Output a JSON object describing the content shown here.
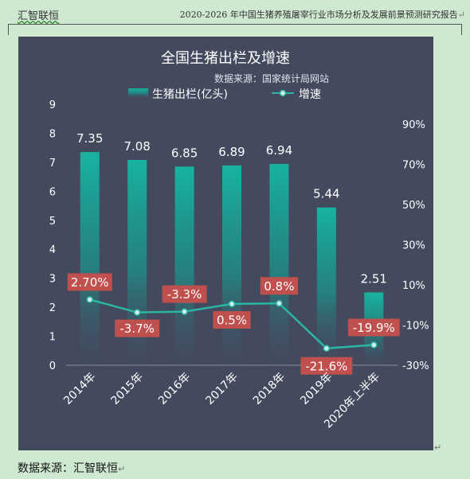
{
  "header": {
    "left": "汇智联恒",
    "right": "2020-2026 年中国生猪养殖屠宰行业市场分析及发展前景预测研究报告"
  },
  "footer": {
    "source": "数据来源：汇智联恒"
  },
  "colors": {
    "panel_bg": "#434a5e",
    "bar_top": "#17b3a0",
    "line": "#2bb6a3",
    "label_box": "#c0504d",
    "text": "#ffffff"
  },
  "chart_data": {
    "type": "bar+line",
    "title": "全国生猪出栏及增速",
    "subtitle": "数据来源：国家统计局网站",
    "categories": [
      "2014年",
      "2015年",
      "2016年",
      "2017年",
      "2018年",
      "2019年",
      "2020年上半年"
    ],
    "series": [
      {
        "name": "生猪出栏(亿头)",
        "type": "bar",
        "axis": "left",
        "values": [
          7.35,
          7.08,
          6.85,
          6.89,
          6.94,
          5.44,
          2.51
        ],
        "labels": [
          "7.35",
          "7.08",
          "6.85",
          "6.89",
          "6.94",
          "5.44",
          "2.51"
        ]
      },
      {
        "name": "增速",
        "type": "line",
        "axis": "right",
        "values": [
          2.7,
          -3.7,
          -3.3,
          0.5,
          0.8,
          -21.6,
          -19.9
        ],
        "labels": [
          "2.70%",
          "-3.7%",
          "-3.3%",
          "0.5%",
          "0.8%",
          "-21.6%",
          "-19.9%"
        ]
      }
    ],
    "y_left": {
      "min": 0,
      "max": 9,
      "ticks": [
        "0",
        "1",
        "2",
        "3",
        "4",
        "5",
        "6",
        "7",
        "8",
        "9"
      ]
    },
    "y_right": {
      "min": -30,
      "max": 100,
      "ticks": [
        "-30%",
        "-10%",
        "10%",
        "30%",
        "50%",
        "70%",
        "90%"
      ],
      "tick_values": [
        -30,
        -10,
        10,
        30,
        50,
        70,
        90
      ]
    },
    "legend_position": "top",
    "grid": false
  }
}
